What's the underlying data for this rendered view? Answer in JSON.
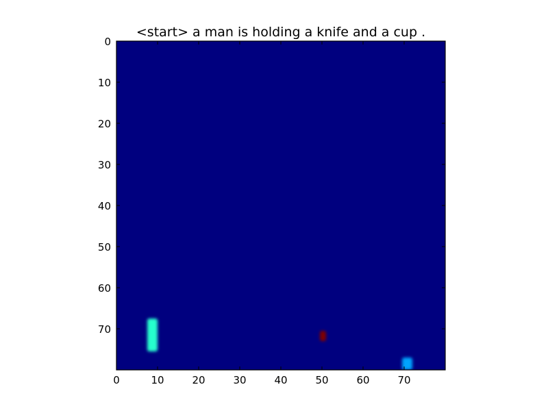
{
  "chart_data": {
    "type": "heatmap",
    "title": "<start> a man is holding a knife and a cup .",
    "xlabel": "",
    "ylabel": "",
    "xlim": [
      0,
      80
    ],
    "ylim": [
      80,
      0
    ],
    "x_ticks": [
      0,
      10,
      20,
      30,
      40,
      50,
      60,
      70
    ],
    "y_ticks": [
      0,
      10,
      20,
      30,
      40,
      50,
      60,
      70
    ],
    "grid": false,
    "colormap": "jet",
    "background_value": 0.0,
    "background_color": "#00007f",
    "hotspots": [
      {
        "x_range": [
          7.5,
          10.0
        ],
        "y_range": [
          67.5,
          75.5
        ],
        "value": 0.45,
        "color": "#28ffce"
      },
      {
        "x_range": [
          49.5,
          51.0
        ],
        "y_range": [
          70.5,
          73.0
        ],
        "value": 1.0,
        "color": "#7f0000"
      },
      {
        "x_range": [
          69.5,
          72.0
        ],
        "y_range": [
          77.0,
          80.0
        ],
        "value": 0.3,
        "color": "#00a4ff"
      }
    ]
  }
}
